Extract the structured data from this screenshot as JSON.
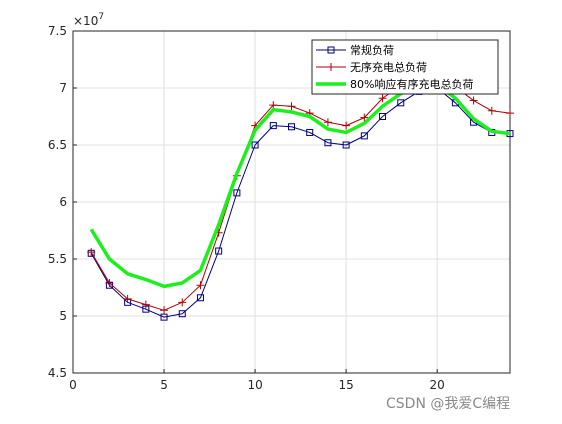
{
  "chart_data": {
    "type": "line",
    "title": "",
    "xlabel": "",
    "ylabel": "",
    "y_exponent_label": "×10",
    "y_exponent_power": "7",
    "xlim": [
      0,
      24
    ],
    "ylim": [
      4.5,
      7.5
    ],
    "x_ticks": [
      0,
      5,
      10,
      15,
      20
    ],
    "y_ticks": [
      4.5,
      5,
      5.5,
      6,
      6.5,
      7,
      7.5
    ],
    "grid": true,
    "legend_position": "top-right",
    "x": [
      1,
      2,
      3,
      4,
      5,
      6,
      7,
      8,
      9,
      10,
      11,
      12,
      13,
      14,
      15,
      16,
      17,
      18,
      19,
      20,
      21,
      22,
      23,
      24
    ],
    "series": [
      {
        "name": "常规负荷",
        "color": "#00007f",
        "marker": "square",
        "values": [
          5.55,
          5.27,
          5.12,
          5.06,
          4.99,
          5.02,
          5.16,
          5.57,
          6.08,
          6.5,
          6.67,
          6.66,
          6.61,
          6.52,
          6.5,
          6.58,
          6.75,
          6.87,
          6.97,
          7.0,
          6.87,
          6.7,
          6.61,
          6.6
        ]
      },
      {
        "name": "无序充电总负荷",
        "color": "#b00000",
        "marker": "plus",
        "values": [
          5.56,
          5.29,
          5.15,
          5.1,
          5.05,
          5.12,
          5.27,
          5.73,
          6.23,
          6.67,
          6.85,
          6.84,
          6.78,
          6.7,
          6.67,
          6.74,
          6.91,
          7.02,
          7.1,
          7.12,
          7.01,
          6.89,
          6.8,
          6.78
        ]
      },
      {
        "name": "80%响应有序充电总负荷",
        "color": "#1cf01c",
        "marker": "none",
        "values": [
          5.76,
          5.5,
          5.37,
          5.32,
          5.26,
          5.29,
          5.4,
          5.8,
          6.25,
          6.63,
          6.81,
          6.79,
          6.75,
          6.64,
          6.61,
          6.69,
          6.84,
          6.95,
          7.03,
          7.03,
          6.91,
          6.73,
          6.62,
          6.6
        ]
      }
    ]
  },
  "watermark": {
    "text": "CSDN @我爱C编程"
  }
}
